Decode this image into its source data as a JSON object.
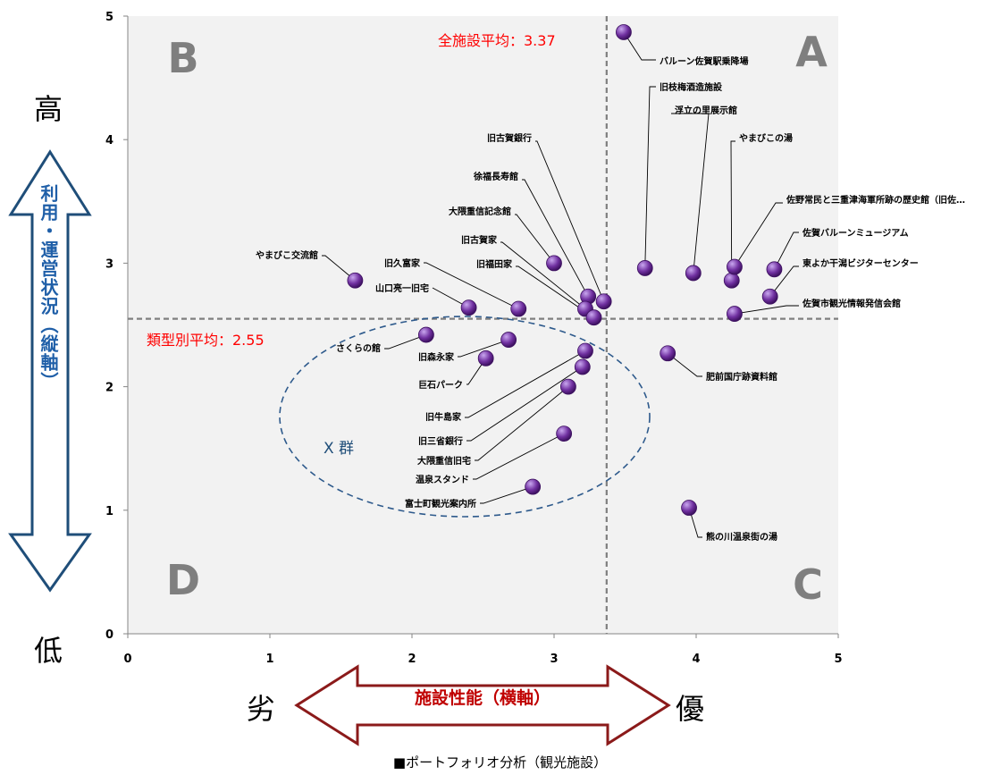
{
  "axis_words": {
    "high": "高",
    "low": "低",
    "poor": "劣",
    "good": "優"
  },
  "yaxis_title": "利用・運営状況（縦軸）",
  "xaxis_title": "施設性能（横軸）",
  "caption": "■ポートフォリオ分析（観光施設）",
  "chart_data": {
    "type": "scatter",
    "xlim": [
      0,
      5
    ],
    "ylim": [
      0,
      5
    ],
    "x_ticks": [
      "0",
      "1",
      "2",
      "3",
      "4",
      "5"
    ],
    "y_ticks": [
      "0",
      "1",
      "2",
      "3",
      "4",
      "5"
    ],
    "grid": false,
    "plot_bg": "#f2f2f2",
    "point_color": "#7030a0",
    "quadrants": [
      "A",
      "B",
      "C",
      "D"
    ],
    "averages": {
      "x_value": 3.37,
      "y_value": 2.55,
      "x_label": "全施設平均：3.37",
      "y_label": "類型別平均：2.55"
    },
    "group": {
      "label": "X 群"
    },
    "points": [
      {
        "name": "バルーン佐賀駅乗降場",
        "x": 3.49,
        "y": 4.87
      },
      {
        "name": "旧枝梅酒造施設",
        "x": 3.64,
        "y": 2.96
      },
      {
        "name": "浮立の里展示館",
        "x": 3.98,
        "y": 2.92
      },
      {
        "name": "やまびこの湯",
        "x": 4.25,
        "y": 2.86
      },
      {
        "name": "佐野常民と三重津海軍所跡の歴史館（旧佐…",
        "x": 4.27,
        "y": 2.97
      },
      {
        "name": "佐賀バルーンミュージアム",
        "x": 4.55,
        "y": 2.95
      },
      {
        "name": "東よか干潟ビジターセンター",
        "x": 4.52,
        "y": 2.73
      },
      {
        "name": "佐賀市観光情報発信会館",
        "x": 4.27,
        "y": 2.59
      },
      {
        "name": "旧古賀銀行",
        "x": 3.35,
        "y": 2.69
      },
      {
        "name": "徐福長寿館",
        "x": 3.24,
        "y": 2.73
      },
      {
        "name": "大隈重信記念館",
        "x": 3.0,
        "y": 3.0
      },
      {
        "name": "旧古賀家",
        "x": 3.22,
        "y": 2.63
      },
      {
        "name": "旧福田家",
        "x": 3.28,
        "y": 2.56
      },
      {
        "name": "旧久富家",
        "x": 2.75,
        "y": 2.63
      },
      {
        "name": "やまびこ交流館",
        "x": 1.6,
        "y": 2.86
      },
      {
        "name": "山口亮一旧宅",
        "x": 2.4,
        "y": 2.64
      },
      {
        "name": "さくらの館",
        "x": 2.1,
        "y": 2.42
      },
      {
        "name": "旧森永家",
        "x": 2.68,
        "y": 2.38
      },
      {
        "name": "巨石パーク",
        "x": 2.52,
        "y": 2.23
      },
      {
        "name": "旧牛島家",
        "x": 3.22,
        "y": 2.29
      },
      {
        "name": "旧三省銀行",
        "x": 3.2,
        "y": 2.16
      },
      {
        "name": "大隈重信旧宅",
        "x": 3.1,
        "y": 2.0
      },
      {
        "name": "温泉スタンド",
        "x": 3.07,
        "y": 1.62
      },
      {
        "name": "富士町観光案内所",
        "x": 2.85,
        "y": 1.19
      },
      {
        "name": "肥前国庁跡資料館",
        "x": 3.8,
        "y": 2.27
      },
      {
        "name": "熊の川温泉街の湯",
        "x": 3.95,
        "y": 1.02
      }
    ]
  }
}
